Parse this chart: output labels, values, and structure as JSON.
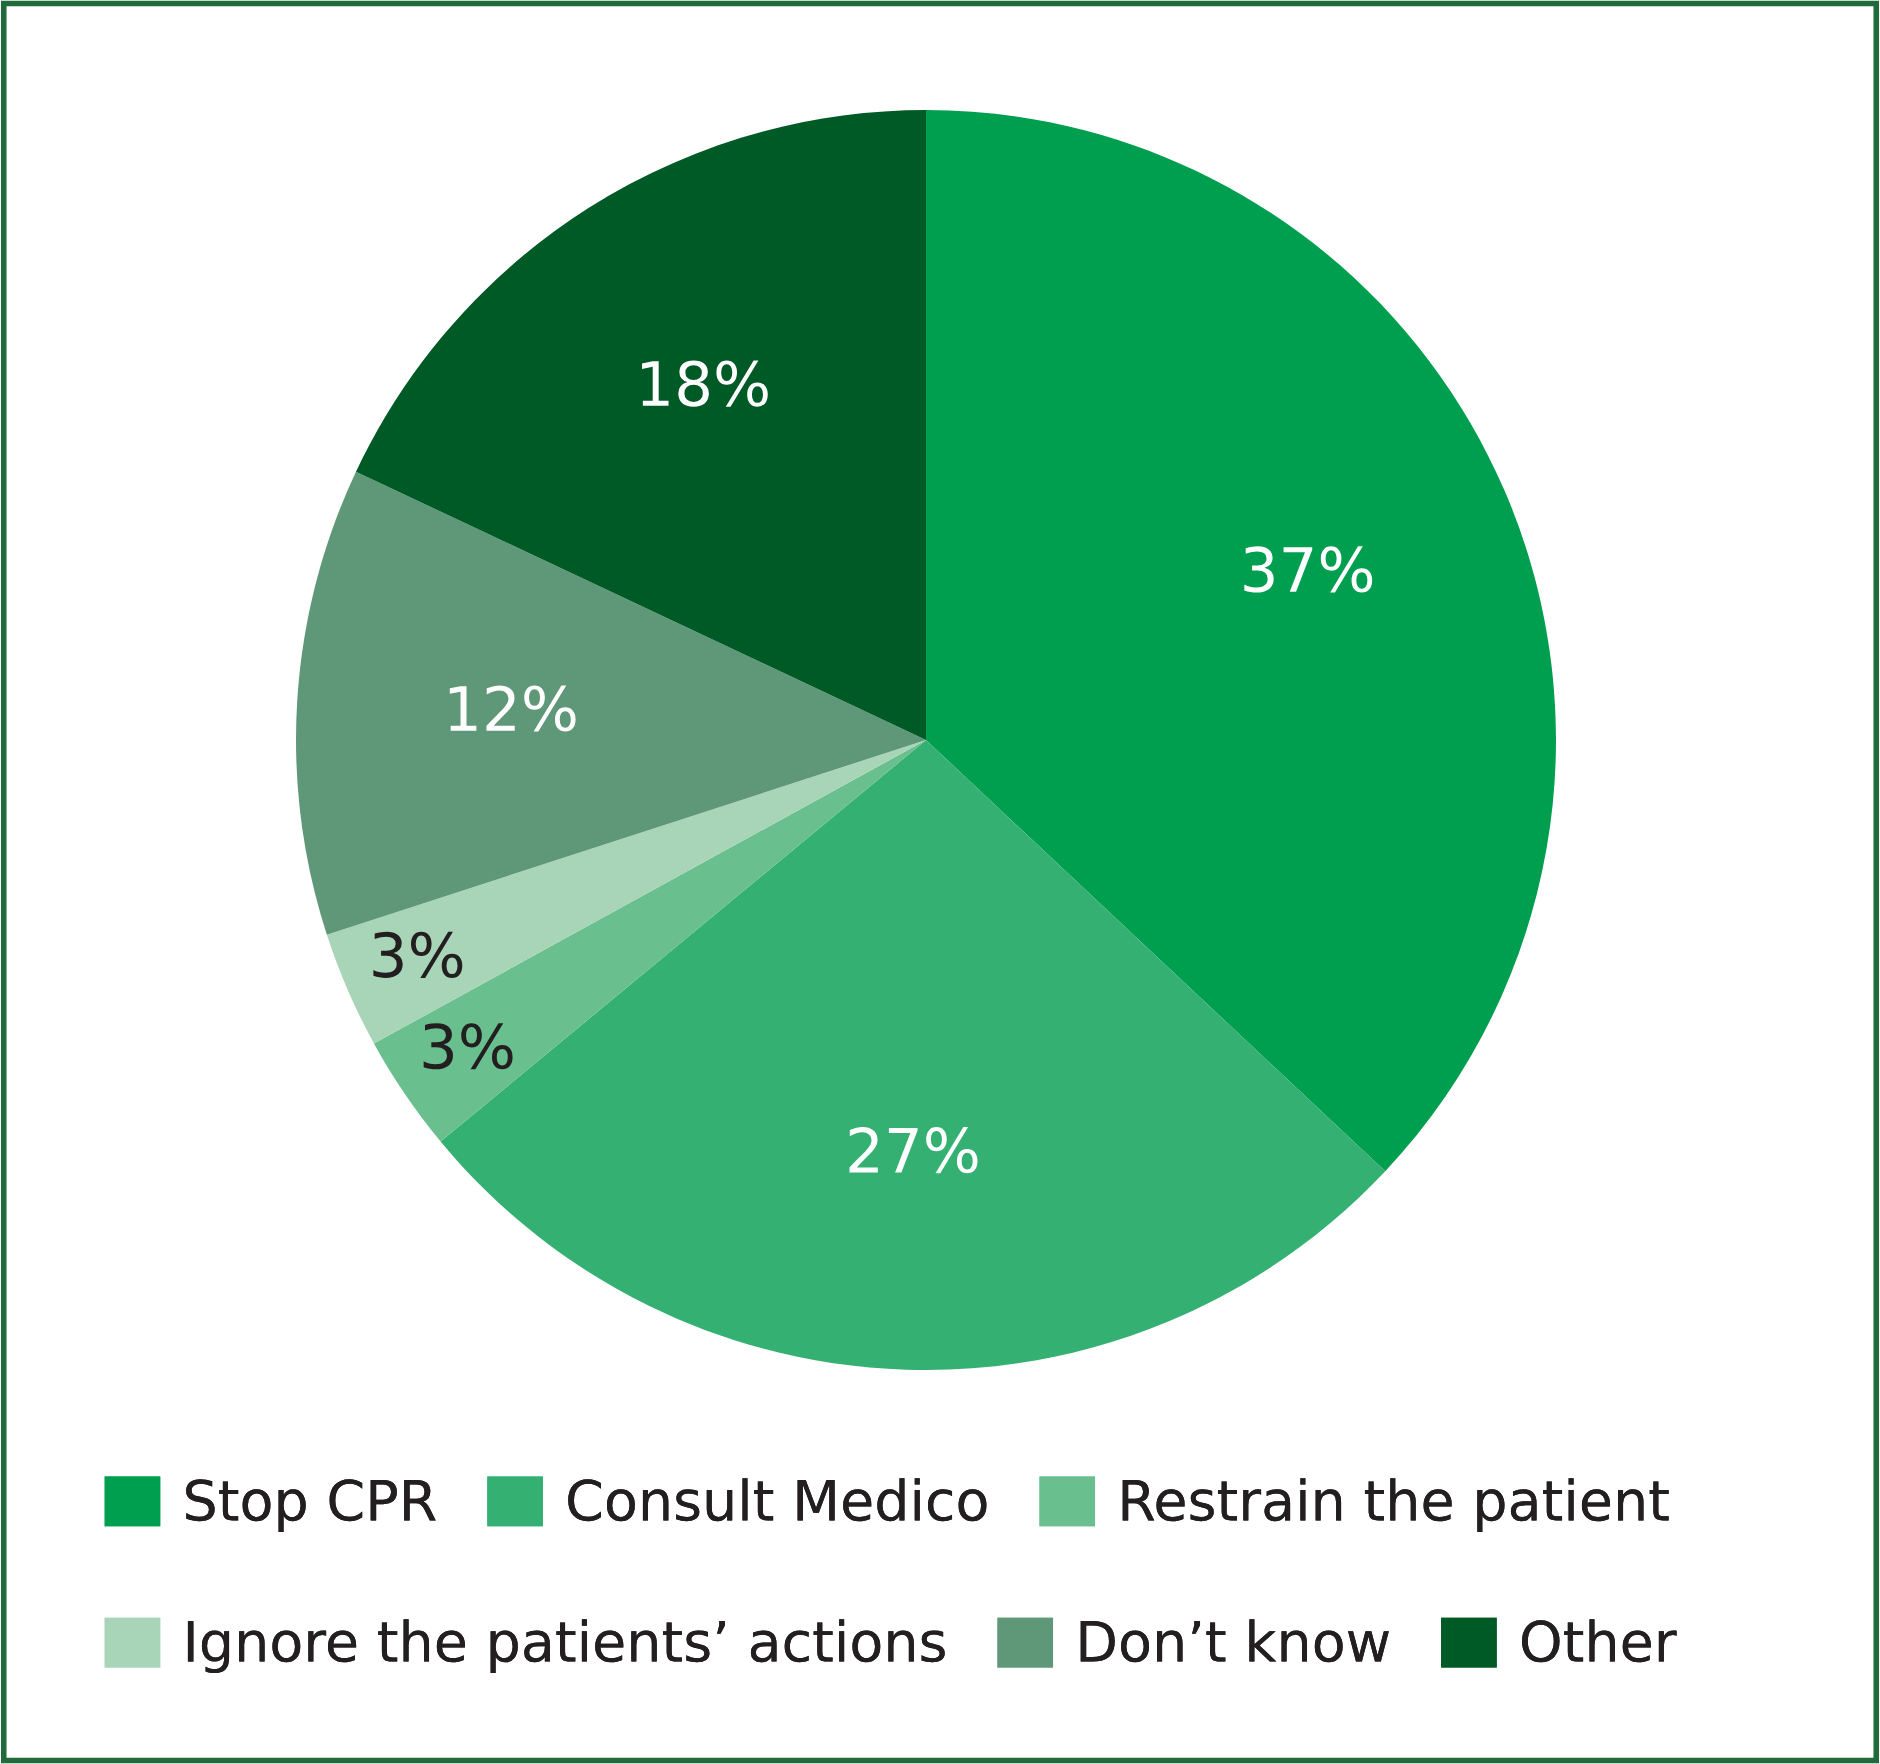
{
  "chart_data": {
    "type": "pie",
    "categories": [
      "Stop CPR",
      "Consult Medico",
      "Restrain the patient",
      "Ignore the patients’ actions",
      "Don’t know",
      "Other"
    ],
    "values": [
      37,
      27,
      3,
      3,
      12,
      18
    ],
    "value_labels": [
      "37%",
      "27%",
      "3%",
      "3%",
      "12%",
      "18%"
    ],
    "colors": [
      "#009e4f",
      "#34b072",
      "#69bf8d",
      "#a8d5b7",
      "#5f9878",
      "#005a26"
    ],
    "legend": "bottom"
  }
}
